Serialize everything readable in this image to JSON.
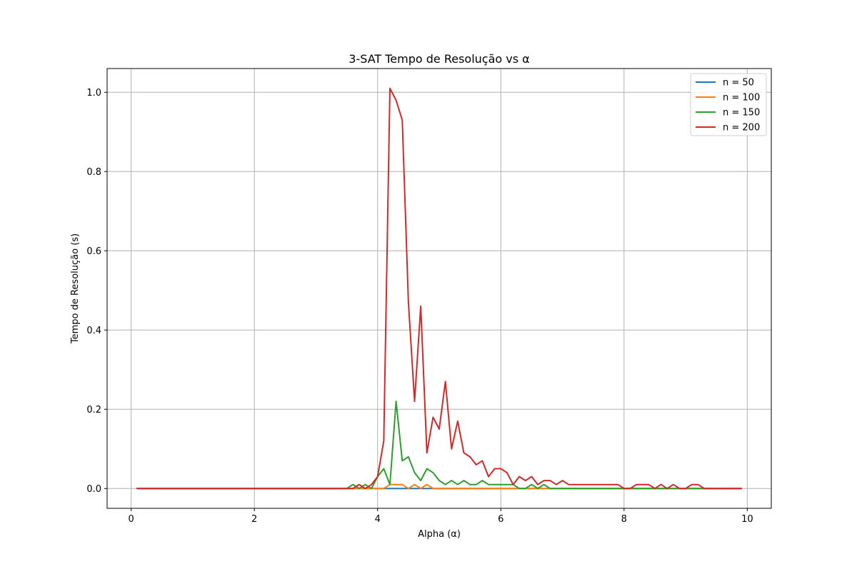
{
  "chart_data": {
    "type": "line",
    "title": "3-SAT Tempo de Resolução vs α",
    "xlabel": "Alpha (α)",
    "ylabel": "Tempo de Resolução (s)",
    "xlim": [
      -0.39,
      10.39
    ],
    "ylim": [
      -0.05,
      1.06
    ],
    "xticks": [
      0,
      2,
      4,
      6,
      8,
      10
    ],
    "xtick_labels": [
      "0",
      "2",
      "4",
      "6",
      "8",
      "10"
    ],
    "yticks": [
      0.0,
      0.2,
      0.4,
      0.6,
      0.8,
      1.0
    ],
    "ytick_labels": [
      "0.0",
      "0.2",
      "0.4",
      "0.6",
      "0.8",
      "1.0"
    ],
    "grid": true,
    "legend_position": "top-right",
    "x": [
      0.1,
      0.2,
      0.3,
      0.4,
      0.5,
      0.6,
      0.7,
      0.8,
      0.9,
      1.0,
      1.1,
      1.2,
      1.3,
      1.4,
      1.5,
      1.6,
      1.7,
      1.8,
      1.9,
      2.0,
      2.1,
      2.2,
      2.3,
      2.4,
      2.5,
      2.6,
      2.7,
      2.8,
      2.9,
      3.0,
      3.1,
      3.2,
      3.3,
      3.4,
      3.5,
      3.6,
      3.7,
      3.8,
      3.9,
      4.0,
      4.1,
      4.2,
      4.3,
      4.4,
      4.5,
      4.6,
      4.7,
      4.8,
      4.9,
      5.0,
      5.1,
      5.2,
      5.3,
      5.4,
      5.5,
      5.6,
      5.7,
      5.8,
      5.9,
      6.0,
      6.1,
      6.2,
      6.3,
      6.4,
      6.5,
      6.6,
      6.7,
      6.8,
      6.9,
      7.0,
      7.1,
      7.2,
      7.3,
      7.4,
      7.5,
      7.6,
      7.7,
      7.8,
      7.9,
      8.0,
      8.1,
      8.2,
      8.3,
      8.4,
      8.5,
      8.6,
      8.7,
      8.8,
      8.9,
      9.0,
      9.1,
      9.2,
      9.3,
      9.4,
      9.5,
      9.6,
      9.7,
      9.8,
      9.9
    ],
    "series": [
      {
        "name": "n = 50",
        "color": "#1f77b4",
        "values": [
          0,
          0,
          0,
          0,
          0,
          0,
          0,
          0,
          0,
          0,
          0,
          0,
          0,
          0,
          0,
          0,
          0,
          0,
          0,
          0,
          0,
          0,
          0,
          0,
          0,
          0,
          0,
          0,
          0,
          0,
          0,
          0,
          0,
          0,
          0,
          0,
          0,
          0,
          0,
          0,
          0,
          0,
          0,
          0,
          0,
          0,
          0,
          0,
          0,
          0,
          0,
          0,
          0,
          0,
          0,
          0,
          0,
          0,
          0,
          0,
          0,
          0,
          0,
          0,
          0,
          0,
          0,
          0,
          0,
          0,
          0,
          0,
          0,
          0,
          0,
          0,
          0,
          0,
          0,
          0,
          0,
          0,
          0,
          0,
          0,
          0,
          0,
          0,
          0,
          0,
          0,
          0,
          0,
          0,
          0,
          0,
          0,
          0,
          0
        ]
      },
      {
        "name": "n = 100",
        "color": "#ff7f0e",
        "values": [
          0,
          0,
          0,
          0,
          0,
          0,
          0,
          0,
          0,
          0,
          0,
          0,
          0,
          0,
          0,
          0,
          0,
          0,
          0,
          0,
          0,
          0,
          0,
          0,
          0,
          0,
          0,
          0,
          0,
          0,
          0,
          0,
          0,
          0,
          0,
          0,
          0,
          0,
          0,
          0,
          0,
          0.01,
          0.01,
          0.01,
          0,
          0.01,
          0,
          0.01,
          0,
          0,
          0,
          0,
          0,
          0,
          0,
          0,
          0,
          0,
          0,
          0,
          0,
          0,
          0,
          0,
          0,
          0,
          0,
          0,
          0,
          0,
          0,
          0,
          0,
          0,
          0,
          0,
          0,
          0,
          0,
          0,
          0,
          0,
          0,
          0,
          0,
          0,
          0,
          0,
          0,
          0,
          0,
          0,
          0,
          0,
          0,
          0,
          0,
          0,
          0
        ]
      },
      {
        "name": "n = 150",
        "color": "#2ca02c",
        "values": [
          0,
          0,
          0,
          0,
          0,
          0,
          0,
          0,
          0,
          0,
          0,
          0,
          0,
          0,
          0,
          0,
          0,
          0,
          0,
          0,
          0,
          0,
          0,
          0,
          0,
          0,
          0,
          0,
          0,
          0,
          0,
          0,
          0,
          0,
          0,
          0.01,
          0,
          0.01,
          0,
          0.03,
          0.05,
          0.01,
          0.22,
          0.07,
          0.08,
          0.04,
          0.02,
          0.05,
          0.04,
          0.02,
          0.01,
          0.02,
          0.01,
          0.02,
          0.01,
          0.01,
          0.02,
          0.01,
          0.01,
          0.01,
          0.01,
          0.01,
          0,
          0,
          0.01,
          0,
          0.01,
          0,
          0,
          0,
          0,
          0,
          0,
          0,
          0,
          0,
          0,
          0,
          0,
          0,
          0,
          0,
          0,
          0,
          0,
          0,
          0,
          0,
          0,
          0,
          0,
          0,
          0,
          0,
          0,
          0,
          0,
          0,
          0
        ]
      },
      {
        "name": "n = 200",
        "color": "#d62728",
        "values": [
          0,
          0,
          0,
          0,
          0,
          0,
          0,
          0,
          0,
          0,
          0,
          0,
          0,
          0,
          0,
          0,
          0,
          0,
          0,
          0,
          0,
          0,
          0,
          0,
          0,
          0,
          0,
          0,
          0,
          0,
          0,
          0,
          0,
          0,
          0,
          0,
          0.01,
          0,
          0.01,
          0.03,
          0.12,
          1.01,
          0.98,
          0.93,
          0.47,
          0.22,
          0.46,
          0.09,
          0.18,
          0.15,
          0.27,
          0.1,
          0.17,
          0.09,
          0.08,
          0.06,
          0.07,
          0.03,
          0.05,
          0.05,
          0.04,
          0.01,
          0.03,
          0.02,
          0.03,
          0.01,
          0.02,
          0.02,
          0.01,
          0.02,
          0.01,
          0.01,
          0.01,
          0.01,
          0.01,
          0.01,
          0.01,
          0.01,
          0.01,
          0,
          0,
          0.01,
          0.01,
          0.01,
          0,
          0.01,
          0,
          0.01,
          0,
          0,
          0.01,
          0.01,
          0,
          0,
          0,
          0,
          0,
          0,
          0
        ]
      }
    ]
  }
}
